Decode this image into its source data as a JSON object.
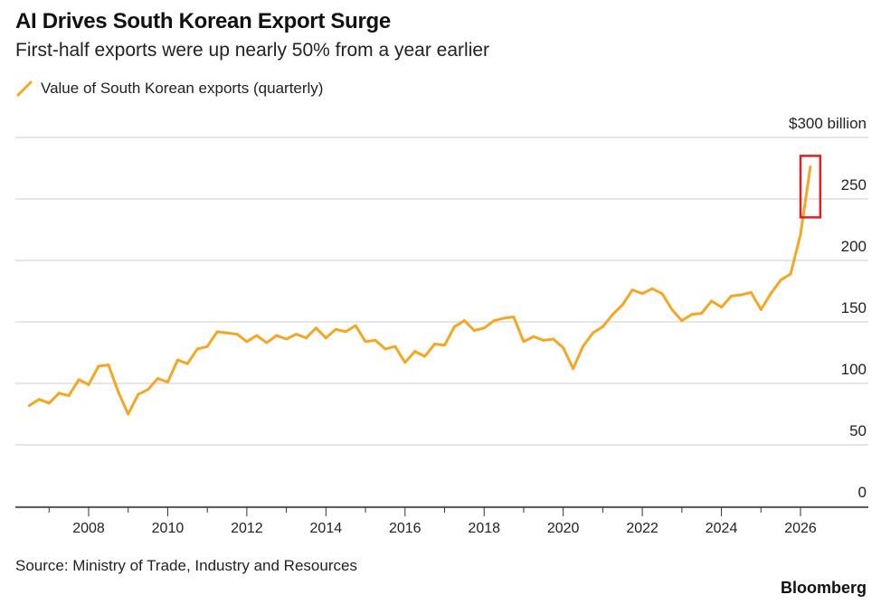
{
  "header": {
    "title": "AI Drives South Korean Export Surge",
    "subtitle": "First-half exports were up nearly 50% from a year earlier"
  },
  "legend": {
    "label": "Value of South Korean exports (quarterly)",
    "icon": "line-swatch-icon"
  },
  "footer": {
    "source": "Source: Ministry of Trade, Industry and Resources",
    "brand": "Bloomberg"
  },
  "colors": {
    "series": "#F5A623",
    "highlight_box": "#E02020",
    "grid": "#cccccc",
    "axis": "#333333"
  },
  "chart_data": {
    "type": "line",
    "title": "AI Drives South Korean Export Surge",
    "subtitle": "First-half exports were up nearly 50% from a year earlier",
    "xlabel": "",
    "ylabel": "",
    "ylim": [
      0,
      300
    ],
    "xlim": [
      2006.5,
      2027.0
    ],
    "y_ticks": [
      {
        "value": 0,
        "label": "0"
      },
      {
        "value": 50,
        "label": "50"
      },
      {
        "value": 100,
        "label": "100"
      },
      {
        "value": 150,
        "label": "150"
      },
      {
        "value": 200,
        "label": "200"
      },
      {
        "value": 250,
        "label": "250"
      },
      {
        "value": 300,
        "label": "$300 billion"
      }
    ],
    "x_ticks": [
      "2008",
      "2010",
      "2012",
      "2014",
      "2016",
      "2018",
      "2020",
      "2022",
      "2024",
      "2026"
    ],
    "grid": "horizontal",
    "legend_position": "top-left",
    "highlight": {
      "x_range": [
        "2026.0",
        "2026.5"
      ],
      "y_range": [
        235,
        285
      ],
      "description_visible": false
    },
    "series": [
      {
        "name": "Value of South Korean exports (quarterly)",
        "x": [
          "2006.5",
          "2006.75",
          "2007.0",
          "2007.25",
          "2007.5",
          "2007.75",
          "2008.0",
          "2008.25",
          "2008.5",
          "2008.75",
          "2009.0",
          "2009.25",
          "2009.5",
          "2009.75",
          "2010.0",
          "2010.25",
          "2010.5",
          "2010.75",
          "2011.0",
          "2011.25",
          "2011.5",
          "2011.75",
          "2012.0",
          "2012.25",
          "2012.5",
          "2012.75",
          "2013.0",
          "2013.25",
          "2013.5",
          "2013.75",
          "2014.0",
          "2014.25",
          "2014.5",
          "2014.75",
          "2015.0",
          "2015.25",
          "2015.5",
          "2015.75",
          "2016.0",
          "2016.25",
          "2016.5",
          "2016.75",
          "2017.0",
          "2017.25",
          "2017.5",
          "2017.75",
          "2018.0",
          "2018.25",
          "2018.5",
          "2018.75",
          "2019.0",
          "2019.25",
          "2019.5",
          "2019.75",
          "2020.0",
          "2020.25",
          "2020.5",
          "2020.75",
          "2021.0",
          "2021.25",
          "2021.5",
          "2021.75",
          "2022.0",
          "2022.25",
          "2022.5",
          "2022.75",
          "2023.0",
          "2023.25",
          "2023.5",
          "2023.75",
          "2024.0",
          "2024.25",
          "2024.5",
          "2024.75",
          "2025.0",
          "2025.25",
          "2025.5",
          "2025.75",
          "2026.0",
          "2026.25"
        ],
        "values": [
          82,
          87,
          84,
          92,
          90,
          103,
          99,
          114,
          115,
          93,
          75,
          91,
          95,
          104,
          101,
          119,
          116,
          128,
          130,
          142,
          141,
          140,
          134,
          139,
          133,
          139,
          136,
          140,
          137,
          145,
          137,
          144,
          142,
          147,
          134,
          135,
          128,
          130,
          117,
          126,
          122,
          132,
          131,
          146,
          151,
          143,
          145,
          151,
          153,
          154,
          134,
          138,
          135,
          136,
          129,
          112,
          130,
          141,
          146,
          156,
          164,
          176,
          173,
          177,
          173,
          160,
          151,
          156,
          157,
          167,
          162,
          171,
          172,
          174,
          160,
          173,
          184,
          189,
          221,
          276
        ]
      }
    ]
  }
}
